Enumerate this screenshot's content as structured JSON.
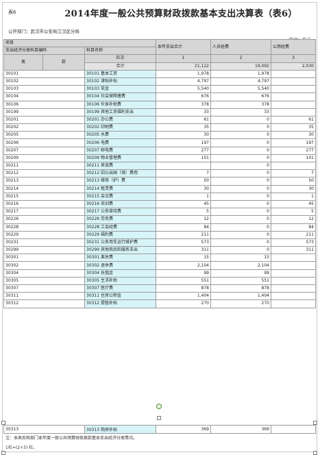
{
  "sheet_tag": "表6",
  "title": "2014年度一般公共预算财政拨款基本支出决算表（表6）",
  "dept": "公开部门：武汉市公安局江汉区分局",
  "unit": "单位：万元",
  "headers": {
    "project": "项目",
    "code_name": "支出经济分类科目编码",
    "item_name": "科目名称",
    "total": "本年支出合计",
    "personnel": "人员经费",
    "public": "公用经费",
    "lei": "类",
    "kuan": "款",
    "col_idx": "栏次",
    "col1": "1",
    "col2": "2",
    "col3": "3",
    "sum_label": "合计",
    "sum_total": "21,122",
    "sum_personnel": "19,092",
    "sum_public": "2,030"
  },
  "rows": [
    {
      "code": "30101",
      "name": "30101 基本工资",
      "total": "1,978",
      "personnel": "1,978",
      "public": ""
    },
    {
      "code": "30102",
      "name": "30102 津贴补贴",
      "total": "4,797",
      "personnel": "4,797",
      "public": ""
    },
    {
      "code": "30103",
      "name": "30103 奖金",
      "total": "5,540",
      "personnel": "5,540",
      "public": ""
    },
    {
      "code": "30104",
      "name": "30104 社会保障缴费",
      "total": "676",
      "personnel": "676",
      "public": ""
    },
    {
      "code": "30106",
      "name": "30106 伙食补助费",
      "total": "378",
      "personnel": "378",
      "public": ""
    },
    {
      "code": "30199",
      "name": "30199 其他工资福利支出",
      "total": "33",
      "personnel": "33",
      "public": ""
    },
    {
      "code": "30201",
      "name": "30201 办公费",
      "total": "61",
      "personnel": "0",
      "public": "61"
    },
    {
      "code": "30202",
      "name": "30202 印刷费",
      "total": "35",
      "personnel": "0",
      "public": "35"
    },
    {
      "code": "30205",
      "name": "30205 水费",
      "total": "30",
      "personnel": "0",
      "public": "30"
    },
    {
      "code": "30206",
      "name": "30206 电费",
      "total": "197",
      "personnel": "0",
      "public": "197"
    },
    {
      "code": "30207",
      "name": "30207 邮电费",
      "total": "277",
      "personnel": "0",
      "public": "277"
    },
    {
      "code": "30209",
      "name": "30209 物业管理费",
      "total": "101",
      "personnel": "0",
      "public": "101"
    },
    {
      "code": "30211",
      "name": "30211 差旅费",
      "total": "",
      "personnel": "0",
      "public": ""
    },
    {
      "code": "30212",
      "name": "30212 因公出国（境）费用",
      "total": "7",
      "personnel": "0",
      "public": "7"
    },
    {
      "code": "30213",
      "name": "30213 维修（护）费",
      "total": "50",
      "personnel": "0",
      "public": "50"
    },
    {
      "code": "30214",
      "name": "30214 租赁费",
      "total": "30",
      "personnel": "0",
      "public": "30"
    },
    {
      "code": "30215",
      "name": "30215 会议费",
      "total": "1",
      "personnel": "0",
      "public": "1"
    },
    {
      "code": "30216",
      "name": "30216 培训费",
      "total": "45",
      "personnel": "0",
      "public": "45"
    },
    {
      "code": "30217",
      "name": "30217 公务接待费",
      "total": "5",
      "personnel": "0",
      "public": "5"
    },
    {
      "code": "30226",
      "name": "30226 劳务费",
      "total": "12",
      "personnel": "0",
      "public": "12"
    },
    {
      "code": "30228",
      "name": "30228 工会经费",
      "total": "84",
      "personnel": "0",
      "public": "84"
    },
    {
      "code": "30229",
      "name": "30229 福利费",
      "total": "211",
      "personnel": "0",
      "public": "211"
    },
    {
      "code": "30231",
      "name": "30231 公务用车运行维护费",
      "total": "573",
      "personnel": "0",
      "public": "573"
    },
    {
      "code": "30299",
      "name": "30299 其他商品和服务支出",
      "total": "311",
      "personnel": "0",
      "public": "311"
    },
    {
      "code": "30301",
      "name": "30301 离休费",
      "total": "15",
      "personnel": "15",
      "public": ""
    },
    {
      "code": "30302",
      "name": "30302 退休费",
      "total": "2,104",
      "personnel": "2,104",
      "public": ""
    },
    {
      "code": "30304",
      "name": "30304 抚恤金",
      "total": "99",
      "personnel": "99",
      "public": ""
    },
    {
      "code": "30305",
      "name": "30305 生活补助",
      "total": "551",
      "personnel": "551",
      "public": ""
    },
    {
      "code": "30307",
      "name": "30307 医疗费",
      "total": "878",
      "personnel": "878",
      "public": ""
    },
    {
      "code": "30311",
      "name": "30311 住房公积金",
      "total": "1,404",
      "personnel": "1,404",
      "public": ""
    },
    {
      "code": "30312",
      "name": "30312 提租补贴",
      "total": "270",
      "personnel": "270",
      "public": ""
    }
  ],
  "extra_row": {
    "code": "30313",
    "name": "30313 购房补贴",
    "total": "369",
    "personnel": "369",
    "public": ""
  },
  "note": "注：本表反映部门本年度一般公共预算财政拨款基本支出经济分类情况。",
  "note2": "1栏=(2+3) 栏。"
}
